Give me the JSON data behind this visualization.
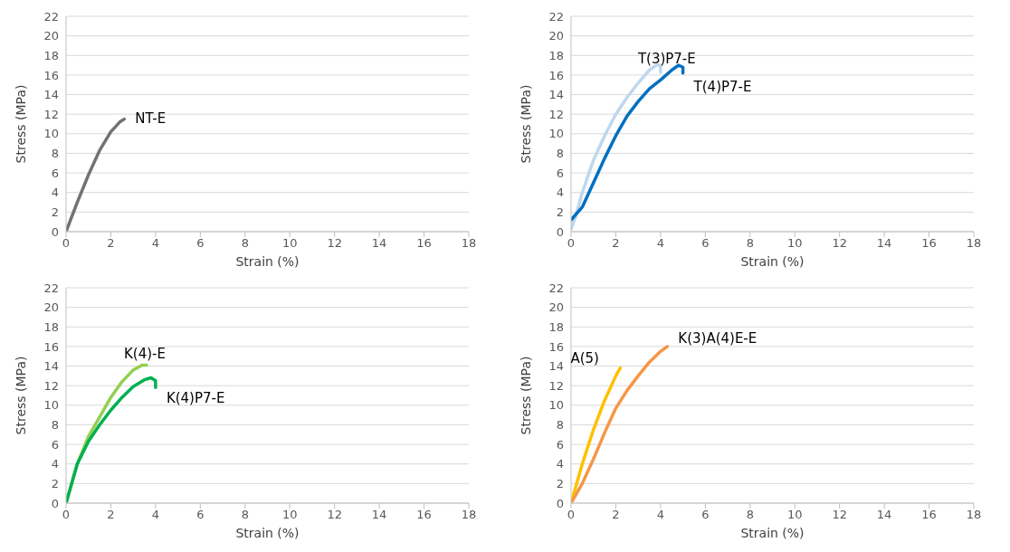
{
  "chart_data": [
    {
      "type": "line",
      "xlabel": "Strain (%)",
      "ylabel": "Stress (MPa)",
      "xlim": [
        0,
        18
      ],
      "xticks": [
        0,
        2,
        4,
        6,
        8,
        10,
        12,
        14,
        16,
        18
      ],
      "ylim": [
        0,
        22
      ],
      "yticks": [
        0,
        2,
        4,
        6,
        8,
        10,
        12,
        14,
        16,
        18,
        20,
        22
      ],
      "grid": "y",
      "legend": false,
      "marker": "none",
      "series": [
        {
          "name": "NT-E",
          "color": "#767171",
          "x": [
            0,
            0.5,
            1,
            1.5,
            2,
            2.4,
            2.6
          ],
          "values": [
            0,
            3,
            5.8,
            8.3,
            10.2,
            11.2,
            11.5
          ]
        }
      ]
    },
    {
      "type": "line",
      "xlabel": "Strain (%)",
      "ylabel": "Stress (MPa)",
      "xlim": [
        0,
        18
      ],
      "xticks": [
        0,
        2,
        4,
        6,
        8,
        10,
        12,
        14,
        16,
        18
      ],
      "ylim": [
        0,
        22
      ],
      "yticks": [
        0,
        2,
        4,
        6,
        8,
        10,
        12,
        14,
        16,
        18,
        20,
        22
      ],
      "grid": "y",
      "legend": false,
      "marker": "none",
      "series": [
        {
          "name": "T(3)P7-E",
          "color": "#bdd7ee",
          "x": [
            0,
            0.2,
            0.5,
            1,
            1.5,
            2,
            2.5,
            3,
            3.5,
            3.8,
            4,
            4
          ],
          "values": [
            0.3,
            1.5,
            4,
            7.3,
            9.8,
            12,
            13.7,
            15.2,
            16.5,
            17,
            17,
            16.3
          ]
        },
        {
          "name": "T(4)P7-E",
          "color": "#0070c0",
          "x": [
            0,
            0.5,
            1,
            1.5,
            2,
            2.5,
            3,
            3.5,
            4,
            4.5,
            4.8,
            5,
            5
          ],
          "values": [
            1.2,
            2.5,
            5,
            7.5,
            9.8,
            11.8,
            13.3,
            14.6,
            15.5,
            16.5,
            17,
            16.8,
            16.2
          ]
        }
      ]
    },
    {
      "type": "line",
      "xlabel": "Strain (%)",
      "ylabel": "Stress (MPa)",
      "xlim": [
        0,
        18
      ],
      "xticks": [
        0,
        2,
        4,
        6,
        8,
        10,
        12,
        14,
        16,
        18
      ],
      "ylim": [
        0,
        22
      ],
      "yticks": [
        0,
        2,
        4,
        6,
        8,
        10,
        12,
        14,
        16,
        18,
        20,
        22
      ],
      "grid": "y",
      "legend": false,
      "marker": "none",
      "series": [
        {
          "name": "K(4)-E",
          "color": "#92d050",
          "x": [
            0,
            0.5,
            1,
            1.5,
            2,
            2.5,
            3,
            3.4,
            3.6
          ],
          "values": [
            0,
            4,
            6.8,
            8.8,
            10.8,
            12.4,
            13.6,
            14.1,
            14.1
          ]
        },
        {
          "name": "K(4)P7-E",
          "color": "#00b050",
          "x": [
            0,
            0.5,
            1,
            1.5,
            2,
            2.5,
            3,
            3.5,
            3.8,
            4,
            4
          ],
          "values": [
            0,
            4,
            6.3,
            8,
            9.5,
            10.8,
            11.9,
            12.6,
            12.8,
            12.5,
            11.8
          ]
        }
      ]
    },
    {
      "type": "line",
      "xlabel": "Strain (%)",
      "ylabel": "Stress (MPa)",
      "xlim": [
        0,
        18
      ],
      "xticks": [
        0,
        2,
        4,
        6,
        8,
        10,
        12,
        14,
        16,
        18
      ],
      "ylim": [
        0,
        22
      ],
      "yticks": [
        0,
        2,
        4,
        6,
        8,
        10,
        12,
        14,
        16,
        18,
        20,
        22
      ],
      "grid": "y",
      "legend": false,
      "marker": "none",
      "series": [
        {
          "name": "A(5)",
          "color": "#ffc000",
          "x": [
            0,
            0.5,
            1,
            1.5,
            2,
            2.2
          ],
          "values": [
            0,
            4,
            7.5,
            10.5,
            13,
            13.8
          ]
        },
        {
          "name": "K(3)A(4)E-E",
          "color": "#f79646",
          "x": [
            0,
            0.5,
            1,
            1.5,
            2,
            2.5,
            3,
            3.5,
            4,
            4.3
          ],
          "values": [
            0,
            2,
            4.5,
            7.2,
            9.7,
            11.5,
            13,
            14.4,
            15.5,
            16
          ]
        }
      ]
    }
  ]
}
